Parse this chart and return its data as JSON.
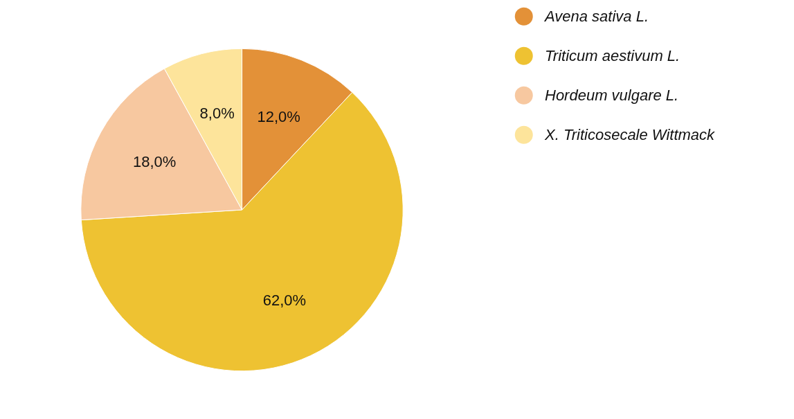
{
  "chart_data": {
    "type": "pie",
    "categories": [
      "Avena sativa L.",
      "Triticum aestivum L.",
      "Hordeum vulgare L.",
      "X. Triticosecale Wittmack"
    ],
    "values": [
      12,
      62,
      18,
      8
    ],
    "colors": [
      "#e39138",
      "#eec232",
      "#f7c8a0",
      "#fde49b"
    ],
    "value_labels": [
      "12,0%",
      "62,0%",
      "18,0%",
      "8,0%"
    ],
    "legend": "top right"
  }
}
